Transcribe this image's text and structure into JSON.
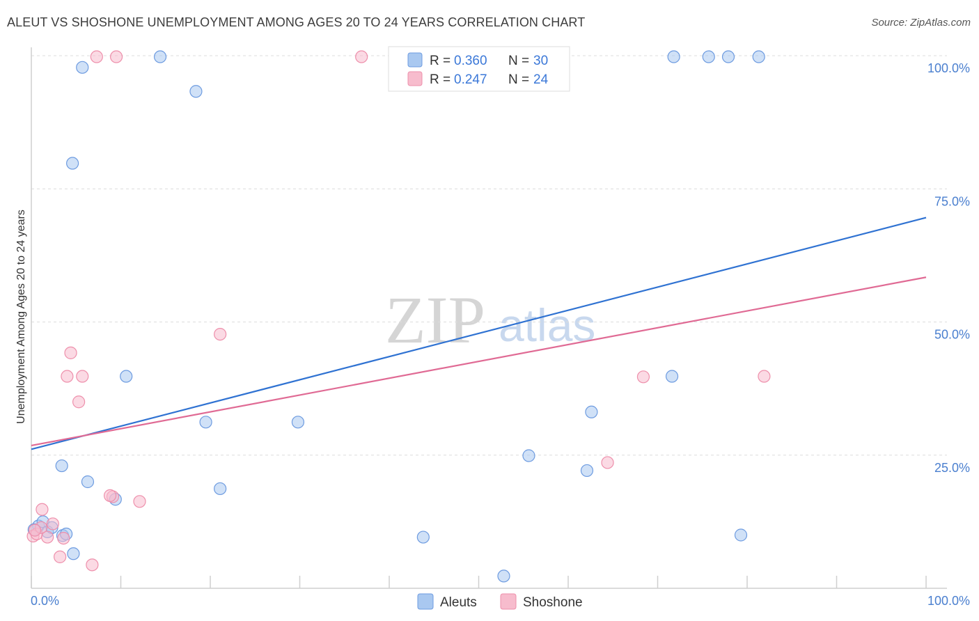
{
  "header": {
    "title": "ALEUT VS SHOSHONE UNEMPLOYMENT AMONG AGES 20 TO 24 YEARS CORRELATION CHART",
    "source": "Source: ZipAtlas.com"
  },
  "watermark": {
    "zip": "ZIP",
    "atlas": "atlas"
  },
  "colors": {
    "aleuts_fill": "#a9c8f0",
    "aleuts_stroke": "#6d9be0",
    "aleuts_line": "#2f72d2",
    "shoshone_fill": "#f7bccd",
    "shoshone_stroke": "#ee8fab",
    "shoshone_line": "#e06a94",
    "tick_label": "#4a7fcf",
    "grid": "#dcdcdc"
  },
  "legend_top": {
    "rows": [
      {
        "r_label": "R =",
        "r_value": "0.360",
        "n_label": "N =",
        "n_value": "30"
      },
      {
        "r_label": "R =",
        "r_value": "0.247",
        "n_label": "N =",
        "n_value": "24"
      }
    ]
  },
  "legend_bottom": {
    "items": [
      "Aleuts",
      "Shoshone"
    ]
  },
  "chart_data": {
    "type": "scatter",
    "title": "ALEUT VS SHOSHONE UNEMPLOYMENT AMONG AGES 20 TO 24 YEARS CORRELATION CHART",
    "xlabel": "",
    "ylabel": "Unemployment Among Ages 20 to 24 years",
    "xlim": [
      0,
      100
    ],
    "ylim": [
      0,
      100
    ],
    "x_tick_labels": [
      "0.0%",
      "100.0%"
    ],
    "y_tick_labels": [
      "25.0%",
      "50.0%",
      "75.0%",
      "100.0%"
    ],
    "y_ticks": [
      25,
      50,
      75,
      100
    ],
    "grid": true,
    "legend_position": "top-center",
    "series": [
      {
        "name": "Aleuts",
        "R": 0.36,
        "N": 30,
        "trend": {
          "x": [
            0,
            100
          ],
          "y": [
            26.1,
            69.6
          ]
        },
        "points": [
          {
            "x": 0.8,
            "y": 11.7
          },
          {
            "x": 1.3,
            "y": 12.5
          },
          {
            "x": 1.8,
            "y": 10.6
          },
          {
            "x": 2.3,
            "y": 11.4
          },
          {
            "x": 3.5,
            "y": 9.9
          },
          {
            "x": 3.4,
            "y": 23.0
          },
          {
            "x": 3.9,
            "y": 10.2
          },
          {
            "x": 4.6,
            "y": 79.8
          },
          {
            "x": 4.7,
            "y": 6.5
          },
          {
            "x": 5.7,
            "y": 97.8
          },
          {
            "x": 6.3,
            "y": 20.0
          },
          {
            "x": 9.4,
            "y": 16.7
          },
          {
            "x": 10.6,
            "y": 39.8
          },
          {
            "x": 14.4,
            "y": 99.8
          },
          {
            "x": 18.4,
            "y": 93.3
          },
          {
            "x": 19.5,
            "y": 31.2
          },
          {
            "x": 21.1,
            "y": 18.7
          },
          {
            "x": 29.8,
            "y": 31.2
          },
          {
            "x": 43.8,
            "y": 9.6
          },
          {
            "x": 52.8,
            "y": 2.3
          },
          {
            "x": 55.6,
            "y": 24.9
          },
          {
            "x": 62.1,
            "y": 22.1
          },
          {
            "x": 62.6,
            "y": 33.1
          },
          {
            "x": 71.6,
            "y": 39.8
          },
          {
            "x": 71.8,
            "y": 99.8
          },
          {
            "x": 75.7,
            "y": 99.8
          },
          {
            "x": 77.9,
            "y": 99.8
          },
          {
            "x": 79.3,
            "y": 10.0
          },
          {
            "x": 81.3,
            "y": 99.8
          },
          {
            "x": 0.3,
            "y": 11.0
          }
        ]
      },
      {
        "name": "Shoshone",
        "R": 0.247,
        "N": 24,
        "trend": {
          "x": [
            0,
            100
          ],
          "y": [
            26.8,
            58.4
          ]
        },
        "points": [
          {
            "x": 0.2,
            "y": 9.8
          },
          {
            "x": 0.6,
            "y": 10.2
          },
          {
            "x": 1.1,
            "y": 11.4
          },
          {
            "x": 1.2,
            "y": 14.8
          },
          {
            "x": 1.8,
            "y": 9.6
          },
          {
            "x": 2.4,
            "y": 12.1
          },
          {
            "x": 3.2,
            "y": 5.9
          },
          {
            "x": 3.6,
            "y": 9.4
          },
          {
            "x": 4.0,
            "y": 39.8
          },
          {
            "x": 4.4,
            "y": 44.2
          },
          {
            "x": 5.3,
            "y": 35.0
          },
          {
            "x": 5.7,
            "y": 39.8
          },
          {
            "x": 6.8,
            "y": 4.4
          },
          {
            "x": 7.3,
            "y": 99.8
          },
          {
            "x": 9.1,
            "y": 17.2
          },
          {
            "x": 8.8,
            "y": 17.4
          },
          {
            "x": 9.5,
            "y": 99.8
          },
          {
            "x": 12.1,
            "y": 16.3
          },
          {
            "x": 21.1,
            "y": 47.7
          },
          {
            "x": 36.9,
            "y": 99.8
          },
          {
            "x": 64.4,
            "y": 23.6
          },
          {
            "x": 68.4,
            "y": 39.7
          },
          {
            "x": 81.9,
            "y": 39.8
          },
          {
            "x": 0.4,
            "y": 10.9
          }
        ]
      }
    ]
  }
}
